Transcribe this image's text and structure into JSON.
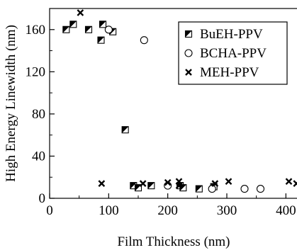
{
  "chart_data": {
    "type": "scatter",
    "xlabel": "Film Thickness (nm)",
    "ylabel": "High Energy Linewidth (nm)",
    "xlim": [
      0,
      420
    ],
    "ylim": [
      0,
      180
    ],
    "xticks": [
      0,
      100,
      200,
      300,
      400
    ],
    "yticks": [
      0,
      40,
      80,
      120,
      160
    ],
    "grid": false,
    "legend_position": "top-right",
    "series": [
      {
        "name": "BuEH-PPV",
        "marker": "half-filled-square",
        "color": "#000000",
        "points": [
          [
            28,
            160
          ],
          [
            40,
            165
          ],
          [
            66,
            160
          ],
          [
            87,
            150
          ],
          [
            90,
            165
          ],
          [
            107,
            158
          ],
          [
            128,
            65
          ],
          [
            142,
            12
          ],
          [
            150,
            10
          ],
          [
            172,
            12
          ],
          [
            221,
            12
          ],
          [
            226,
            10
          ],
          [
            253,
            9
          ],
          [
            278,
            11
          ]
        ]
      },
      {
        "name": "BCHA-PPV",
        "marker": "open-circle",
        "color": "#000000",
        "points": [
          [
            100,
            160
          ],
          [
            160,
            150
          ],
          [
            200,
            12
          ],
          [
            275,
            9
          ],
          [
            330,
            9
          ],
          [
            357,
            9
          ]
        ]
      },
      {
        "name": "MEH-PPV",
        "marker": "x",
        "color": "#000000",
        "points": [
          [
            52,
            176
          ],
          [
            88,
            14
          ],
          [
            158,
            14
          ],
          [
            200,
            15
          ],
          [
            219,
            16
          ],
          [
            219,
            12
          ],
          [
            280,
            14
          ],
          [
            303,
            16
          ],
          [
            405,
            16
          ],
          [
            418,
            14
          ]
        ]
      }
    ]
  }
}
